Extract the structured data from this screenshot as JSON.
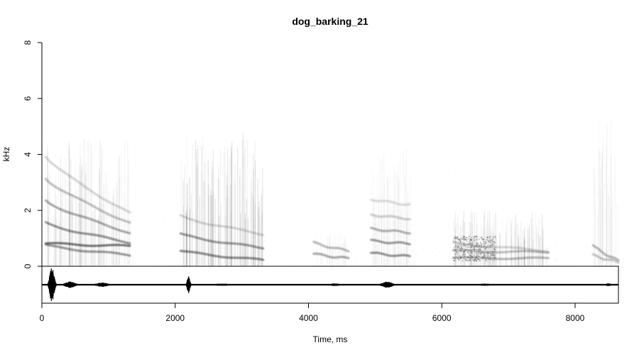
{
  "chart_data": {
    "type": "spectrogram",
    "title": "dog_barking_21",
    "xlabel": "Time, ms",
    "ylabel": "kHz",
    "xlim": [
      0,
      8650
    ],
    "ylim": [
      0,
      8
    ],
    "xticks": [
      0,
      2000,
      4000,
      6000,
      8000
    ],
    "yticks": [
      0,
      2,
      4,
      6,
      8
    ],
    "grid": false,
    "legend": "none",
    "colors": {
      "ink": "#000000",
      "background": "#ffffff"
    },
    "events": [
      {
        "t0": 60,
        "t1": 1320,
        "lines": [
          {
            "y0": 0.82,
            "y1": 0.72,
            "i": 0.95
          },
          {
            "y0": 0.75,
            "y1": 0.4,
            "i": 0.7
          },
          {
            "y0": 1.55,
            "y1": 0.85,
            "i": 0.75
          },
          {
            "y0": 2.35,
            "y1": 1.2,
            "i": 0.6
          },
          {
            "y0": 3.15,
            "y1": 1.55,
            "i": 0.45
          },
          {
            "y0": 3.95,
            "y1": 1.9,
            "i": 0.3
          }
        ],
        "haze": {
          "top": 4.6,
          "i": 0.12
        }
      },
      {
        "t0": 2080,
        "t1": 3320,
        "lines": [
          {
            "y0": 0.55,
            "y1": 0.22,
            "i": 0.8
          },
          {
            "y0": 1.15,
            "y1": 0.65,
            "i": 0.7
          },
          {
            "y0": 1.8,
            "y1": 1.15,
            "i": 0.3
          }
        ],
        "haze": {
          "top": 4.8,
          "i": 0.2
        }
      },
      {
        "t0": 4080,
        "t1": 4600,
        "lines": [
          {
            "y0": 0.45,
            "y1": 0.28,
            "i": 0.6
          },
          {
            "y0": 0.85,
            "y1": 0.55,
            "i": 0.5
          }
        ],
        "haze": {
          "top": 1.2,
          "i": 0.05
        }
      },
      {
        "t0": 4940,
        "t1": 5520,
        "lines": [
          {
            "y0": 0.48,
            "y1": 0.35,
            "i": 0.75
          },
          {
            "y0": 0.92,
            "y1": 0.8,
            "i": 0.7
          },
          {
            "y0": 1.35,
            "y1": 1.2,
            "i": 0.55
          },
          {
            "y0": 1.85,
            "y1": 1.7,
            "i": 0.35
          },
          {
            "y0": 2.4,
            "y1": 2.2,
            "i": 0.25
          }
        ],
        "haze": {
          "top": 4.2,
          "i": 0.08
        }
      },
      {
        "t0": 6170,
        "t1": 7600,
        "lines": [
          {
            "y0": 0.3,
            "y1": 0.28,
            "i": 0.5
          },
          {
            "y0": 0.55,
            "y1": 0.5,
            "i": 0.45
          },
          {
            "y0": 0.85,
            "y1": 0.55,
            "i": 0.3
          }
        ],
        "haze": {
          "top": 2.0,
          "i": 0.15
        }
      },
      {
        "t0": 8270,
        "t1": 8650,
        "lines": [
          {
            "y0": 0.75,
            "y1": 0.2,
            "i": 0.5
          },
          {
            "y0": 0.4,
            "y1": 0.15,
            "i": 0.4
          }
        ],
        "haze": {
          "top": 5.3,
          "i": 0.08
        }
      }
    ],
    "waveform_bursts": [
      {
        "t": 150,
        "amp": 1.0,
        "width": 130
      },
      {
        "t": 420,
        "amp": 0.18,
        "width": 300
      },
      {
        "t": 900,
        "amp": 0.12,
        "width": 350
      },
      {
        "t": 2200,
        "amp": 0.5,
        "width": 80
      },
      {
        "t": 2700,
        "amp": 0.06,
        "width": 500
      },
      {
        "t": 4400,
        "amp": 0.08,
        "width": 250
      },
      {
        "t": 5180,
        "amp": 0.18,
        "width": 300
      },
      {
        "t": 6650,
        "amp": 0.06,
        "width": 400
      },
      {
        "t": 8500,
        "amp": 0.08,
        "width": 150
      }
    ]
  }
}
